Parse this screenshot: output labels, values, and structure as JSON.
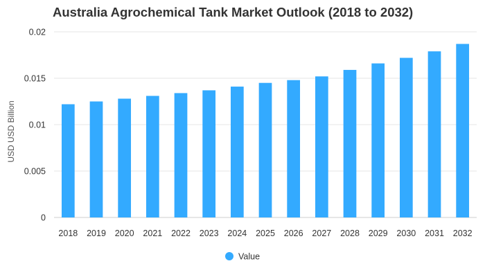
{
  "chart_data": {
    "type": "bar",
    "title": "Australia Agrochemical Tank Market Outlook (2018 to 2032)",
    "xlabel": "",
    "ylabel": "USD USD Billion",
    "categories": [
      "2018",
      "2019",
      "2020",
      "2021",
      "2022",
      "2023",
      "2024",
      "2025",
      "2026",
      "2027",
      "2028",
      "2029",
      "2030",
      "2031",
      "2032"
    ],
    "series": [
      {
        "name": "Value",
        "values": [
          0.0122,
          0.0125,
          0.0128,
          0.0131,
          0.0134,
          0.0137,
          0.0141,
          0.0145,
          0.0148,
          0.0152,
          0.0159,
          0.0166,
          0.0172,
          0.0179,
          0.0187
        ]
      }
    ],
    "ylim": [
      0,
      0.02
    ],
    "yticks": [
      "0",
      "0.005",
      "0.01",
      "0.015",
      "0.02"
    ],
    "ytick_values": [
      0,
      0.005,
      0.01,
      0.015,
      0.02
    ],
    "grid": true,
    "legend_position": "bottom-center",
    "colors": {
      "bar": "#33aaff",
      "grid": "#e6e6e6"
    }
  }
}
